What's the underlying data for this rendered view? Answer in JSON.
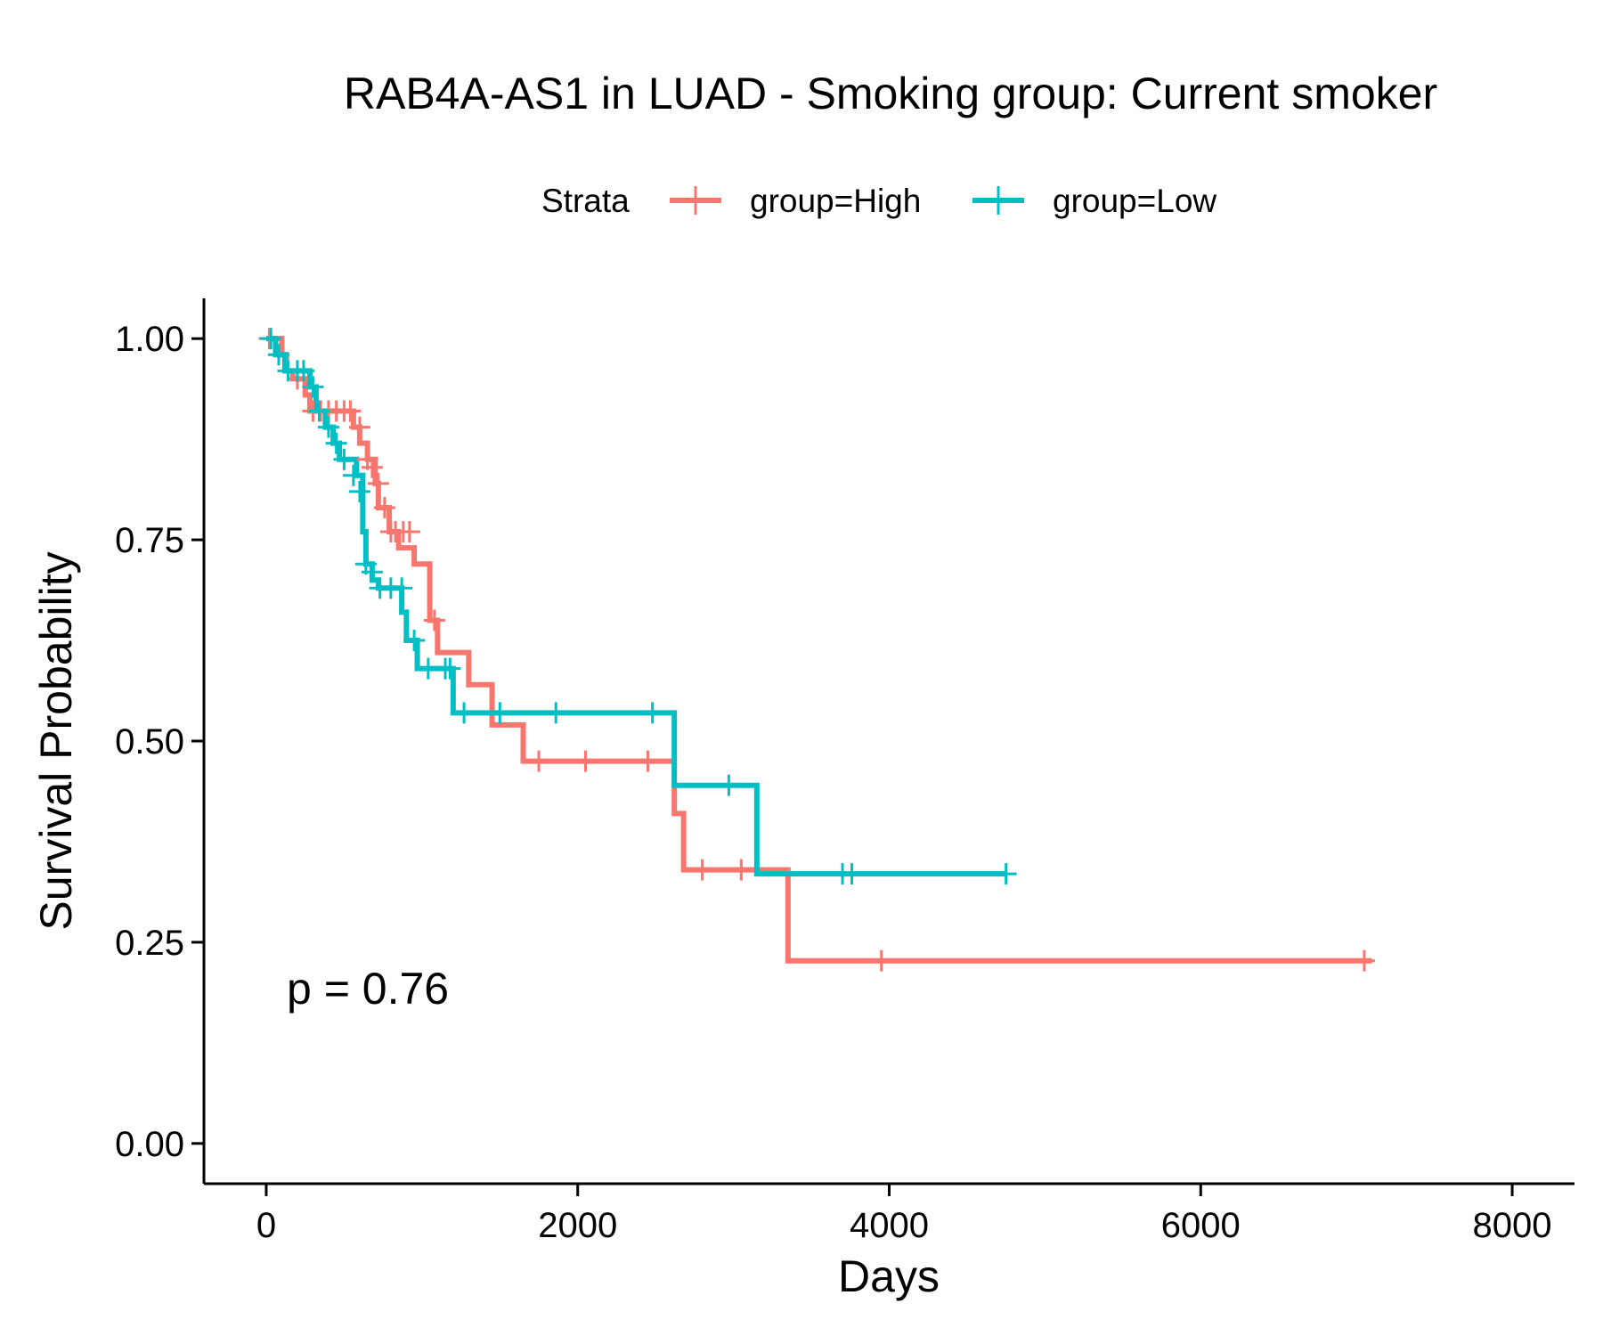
{
  "chart_data": {
    "type": "line",
    "subtype": "kaplan-meier",
    "title": "RAB4A-AS1 in LUAD - Smoking group: Current smoker",
    "xlabel": "Days",
    "ylabel": "Survival Probability",
    "xlim": [
      -400,
      8400
    ],
    "ylim": [
      -0.05,
      1.05
    ],
    "xticks": [
      0,
      2000,
      4000,
      6000,
      8000
    ],
    "yticks": [
      0.0,
      0.25,
      0.5,
      0.75,
      1.0
    ],
    "xtick_labels": [
      "0",
      "2000",
      "4000",
      "6000",
      "8000"
    ],
    "ytick_labels": [
      "0.00",
      "0.25",
      "0.50",
      "0.75",
      "1.00"
    ],
    "grid": false,
    "legend": {
      "title": "Strata",
      "placement": "top"
    },
    "annotation": "p = 0.76",
    "series": [
      {
        "name": "group=High",
        "color": "#F8766D",
        "steps": [
          [
            0,
            1.0
          ],
          [
            100,
            0.98
          ],
          [
            130,
            0.96
          ],
          [
            170,
            0.95
          ],
          [
            250,
            0.93
          ],
          [
            280,
            0.91
          ],
          [
            560,
            0.89
          ],
          [
            600,
            0.87
          ],
          [
            650,
            0.85
          ],
          [
            700,
            0.82
          ],
          [
            720,
            0.79
          ],
          [
            790,
            0.76
          ],
          [
            850,
            0.74
          ],
          [
            950,
            0.72
          ],
          [
            1050,
            0.65
          ],
          [
            1100,
            0.61
          ],
          [
            1300,
            0.57
          ],
          [
            1450,
            0.52
          ],
          [
            1650,
            0.475
          ],
          [
            2620,
            0.41
          ],
          [
            2680,
            0.34
          ],
          [
            3350,
            0.227
          ],
          [
            7100,
            0.227
          ]
        ],
        "censored": [
          [
            20,
            1.0
          ],
          [
            200,
            0.95
          ],
          [
            300,
            0.91
          ],
          [
            350,
            0.91
          ],
          [
            400,
            0.91
          ],
          [
            450,
            0.91
          ],
          [
            500,
            0.91
          ],
          [
            540,
            0.91
          ],
          [
            600,
            0.89
          ],
          [
            650,
            0.85
          ],
          [
            680,
            0.84
          ],
          [
            720,
            0.82
          ],
          [
            760,
            0.79
          ],
          [
            800,
            0.76
          ],
          [
            830,
            0.76
          ],
          [
            880,
            0.76
          ],
          [
            920,
            0.76
          ],
          [
            1080,
            0.65
          ],
          [
            1750,
            0.475
          ],
          [
            2050,
            0.475
          ],
          [
            2450,
            0.475
          ],
          [
            2800,
            0.34
          ],
          [
            3050,
            0.34
          ],
          [
            3950,
            0.227
          ],
          [
            7050,
            0.227
          ]
        ]
      },
      {
        "name": "group=Low",
        "color": "#00BFC4",
        "steps": [
          [
            0,
            1.0
          ],
          [
            60,
            0.98
          ],
          [
            120,
            0.96
          ],
          [
            280,
            0.94
          ],
          [
            320,
            0.91
          ],
          [
            380,
            0.89
          ],
          [
            430,
            0.87
          ],
          [
            470,
            0.85
          ],
          [
            580,
            0.83
          ],
          [
            620,
            0.76
          ],
          [
            640,
            0.72
          ],
          [
            680,
            0.7
          ],
          [
            720,
            0.69
          ],
          [
            870,
            0.66
          ],
          [
            900,
            0.625
          ],
          [
            970,
            0.59
          ],
          [
            1200,
            0.535
          ],
          [
            2620,
            0.445
          ],
          [
            3150,
            0.335
          ],
          [
            4750,
            0.335
          ]
        ],
        "censored": [
          [
            30,
            1.0
          ],
          [
            80,
            0.98
          ],
          [
            140,
            0.96
          ],
          [
            200,
            0.96
          ],
          [
            240,
            0.96
          ],
          [
            300,
            0.94
          ],
          [
            340,
            0.91
          ],
          [
            400,
            0.89
          ],
          [
            450,
            0.87
          ],
          [
            500,
            0.85
          ],
          [
            560,
            0.83
          ],
          [
            600,
            0.81
          ],
          [
            640,
            0.72
          ],
          [
            680,
            0.71
          ],
          [
            730,
            0.69
          ],
          [
            800,
            0.69
          ],
          [
            870,
            0.69
          ],
          [
            950,
            0.625
          ],
          [
            1040,
            0.59
          ],
          [
            1150,
            0.59
          ],
          [
            1180,
            0.59
          ],
          [
            1270,
            0.535
          ],
          [
            1500,
            0.535
          ],
          [
            1860,
            0.535
          ],
          [
            2480,
            0.535
          ],
          [
            2970,
            0.445
          ],
          [
            3700,
            0.335
          ],
          [
            3760,
            0.335
          ],
          [
            4750,
            0.335
          ]
        ]
      }
    ]
  }
}
